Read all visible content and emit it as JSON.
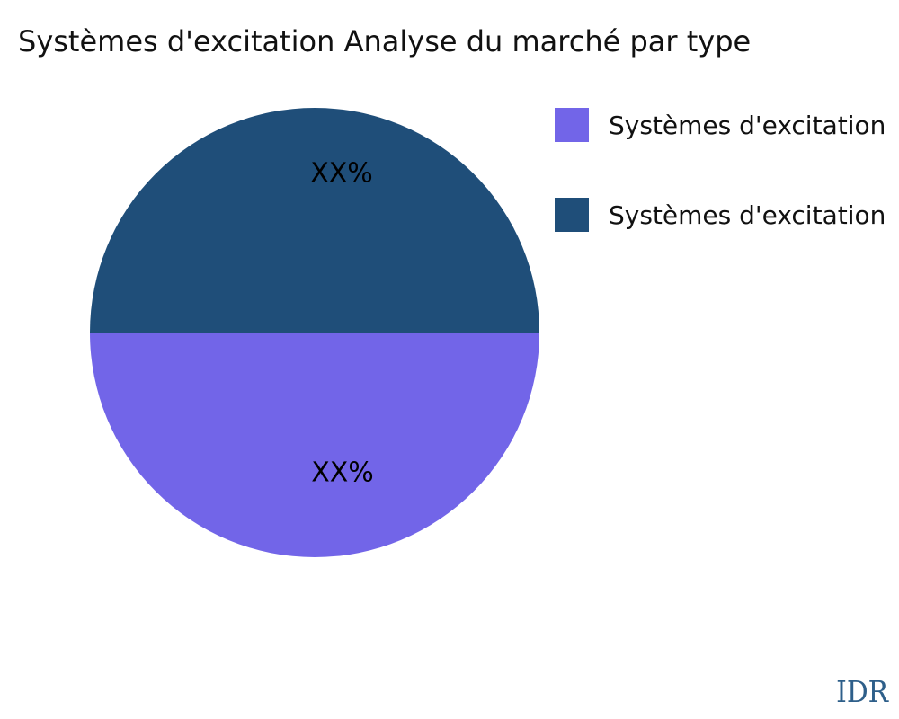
{
  "page": {
    "background": "#ffffff"
  },
  "header": {
    "title": "Systèmes d'excitation Analyse du marché par type"
  },
  "watermark": {
    "label": "IDR",
    "color": "#2e5f8a"
  },
  "chart_data": {
    "type": "pie",
    "title": "Systèmes d'excitation Analyse du marché par type",
    "legend_position": "right",
    "start_angle_deg": 90,
    "slices": [
      {
        "label": "Systèmes d'excitation",
        "value": 50,
        "display_value": "XX%",
        "color": "#7265E8",
        "position": "bottom-half"
      },
      {
        "label": "Systèmes d'excitation",
        "value": 50,
        "display_value": "XX%",
        "color": "#1F4E79",
        "position": "top-half"
      }
    ]
  }
}
